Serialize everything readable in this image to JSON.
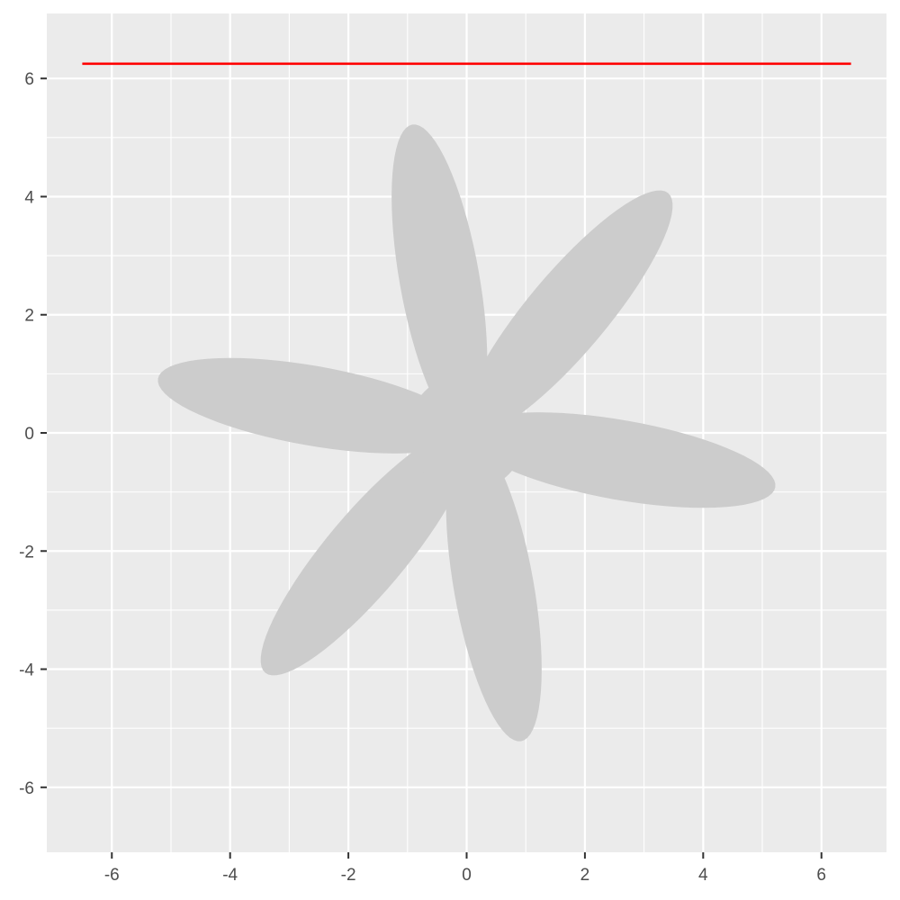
{
  "chart_data": {
    "type": "line",
    "title": "",
    "xlabel": "",
    "ylabel": "",
    "xlim": [
      -7.1,
      7.1
    ],
    "ylim": [
      -7.1,
      7.1
    ],
    "grid": true,
    "x_ticks": [
      -6,
      -4,
      -2,
      0,
      2,
      4,
      6
    ],
    "y_ticks": [
      -6,
      -4,
      -2,
      0,
      2,
      4,
      6
    ],
    "x_tick_labels": [
      "-6",
      "-4",
      "-2",
      "0",
      "2",
      "4",
      "6"
    ],
    "y_tick_labels": [
      "-6",
      "-4",
      "-2",
      "0",
      "2",
      "4",
      "6"
    ],
    "shape": {
      "kind": "propeller",
      "fill": "#cccccc",
      "hub_center": [
        0,
        0
      ],
      "hub_radius": 1.0,
      "blade_length": 5.3,
      "blade_width": 1.35,
      "blade_tip_angles_deg": [
        100,
        50,
        -10,
        -80,
        -130,
        170
      ]
    },
    "series": [
      {
        "color": "#ff0000",
        "x": [
          -6.5,
          6.5
        ],
        "y": [
          6.25,
          6.25
        ]
      }
    ]
  },
  "colors": {
    "panel": "#ebebeb",
    "grid": "#ffffff",
    "axis_tick": "#333333"
  }
}
